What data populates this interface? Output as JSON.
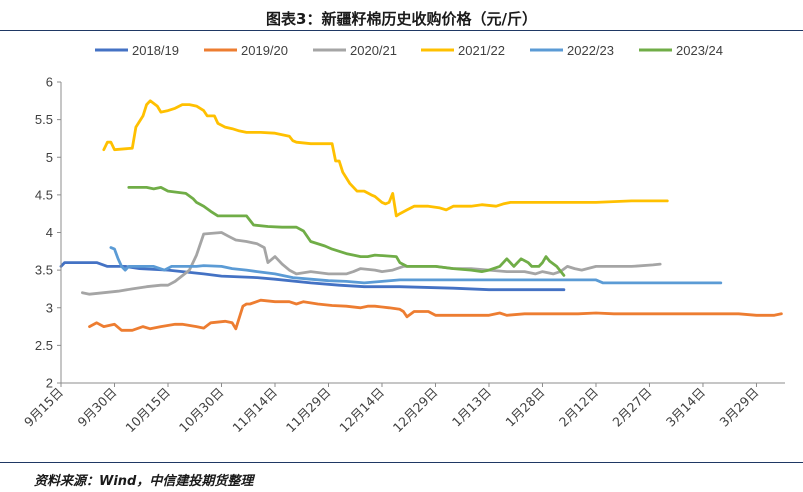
{
  "title": "图表3：新疆籽棉历史收购价格（元/斤）",
  "source": "资料来源：Wind，中信建投期货整理",
  "chart_data": {
    "type": "line",
    "title": "图表3：新疆籽棉历史收购价格（元/斤）",
    "xlabel": "",
    "ylabel": "",
    "ylim": [
      2,
      6
    ],
    "yticks": [
      "2",
      "2.5",
      "3",
      "3.5",
      "4",
      "4.5",
      "5",
      "5.5",
      "6"
    ],
    "x_categories": [
      "9月15日",
      "9月30日",
      "10月15日",
      "10月30日",
      "11月14日",
      "11月29日",
      "12月14日",
      "12月29日",
      "1月13日",
      "1月28日",
      "2月12日",
      "2月27日",
      "3月14日",
      "3月29日"
    ],
    "x_index_note": "x values are day offsets; 0 = 9月15日, each labelled tick is 15 days apart",
    "legend_position": "top",
    "grid": false,
    "series": [
      {
        "name": "2018/19",
        "color": "#4472c4",
        "points": [
          [
            0,
            3.55
          ],
          [
            1,
            3.6
          ],
          [
            5,
            3.6
          ],
          [
            10,
            3.6
          ],
          [
            13,
            3.55
          ],
          [
            18,
            3.55
          ],
          [
            22,
            3.52
          ],
          [
            30,
            3.5
          ],
          [
            40,
            3.45
          ],
          [
            45,
            3.42
          ],
          [
            55,
            3.4
          ],
          [
            60,
            3.38
          ],
          [
            70,
            3.33
          ],
          [
            78,
            3.3
          ],
          [
            85,
            3.28
          ],
          [
            95,
            3.28
          ],
          [
            110,
            3.26
          ],
          [
            120,
            3.24
          ],
          [
            130,
            3.24
          ],
          [
            141,
            3.24
          ]
        ]
      },
      {
        "name": "2019/20",
        "color": "#ed7d31",
        "points": [
          [
            8,
            2.75
          ],
          [
            10,
            2.8
          ],
          [
            12,
            2.75
          ],
          [
            15,
            2.78
          ],
          [
            17,
            2.7
          ],
          [
            20,
            2.7
          ],
          [
            23,
            2.75
          ],
          [
            25,
            2.72
          ],
          [
            28,
            2.75
          ],
          [
            32,
            2.78
          ],
          [
            34,
            2.78
          ],
          [
            38,
            2.75
          ],
          [
            40,
            2.73
          ],
          [
            42,
            2.8
          ],
          [
            46,
            2.82
          ],
          [
            48,
            2.8
          ],
          [
            49,
            2.72
          ],
          [
            51,
            3.02
          ],
          [
            52,
            3.05
          ],
          [
            53,
            3.05
          ],
          [
            56,
            3.1
          ],
          [
            60,
            3.08
          ],
          [
            64,
            3.08
          ],
          [
            66,
            3.05
          ],
          [
            68,
            3.08
          ],
          [
            72,
            3.05
          ],
          [
            76,
            3.03
          ],
          [
            80,
            3.02
          ],
          [
            84,
            3.0
          ],
          [
            86,
            3.02
          ],
          [
            88,
            3.02
          ],
          [
            92,
            3.0
          ],
          [
            95,
            2.98
          ],
          [
            96,
            2.95
          ],
          [
            97,
            2.88
          ],
          [
            99,
            2.95
          ],
          [
            103,
            2.95
          ],
          [
            105,
            2.9
          ],
          [
            108,
            2.9
          ],
          [
            112,
            2.9
          ],
          [
            115,
            2.9
          ],
          [
            120,
            2.9
          ],
          [
            123,
            2.93
          ],
          [
            125,
            2.9
          ],
          [
            130,
            2.92
          ],
          [
            136,
            2.92
          ],
          [
            140,
            2.92
          ],
          [
            145,
            2.92
          ],
          [
            150,
            2.93
          ],
          [
            155,
            2.92
          ],
          [
            160,
            2.92
          ],
          [
            170,
            2.92
          ],
          [
            180,
            2.92
          ],
          [
            190,
            2.92
          ],
          [
            195,
            2.9
          ],
          [
            200,
            2.9
          ],
          [
            202,
            2.92
          ]
        ]
      },
      {
        "name": "2020/21",
        "color": "#a5a5a5",
        "points": [
          [
            6,
            3.2
          ],
          [
            8,
            3.18
          ],
          [
            12,
            3.2
          ],
          [
            16,
            3.22
          ],
          [
            20,
            3.25
          ],
          [
            24,
            3.28
          ],
          [
            28,
            3.3
          ],
          [
            30,
            3.3
          ],
          [
            32,
            3.35
          ],
          [
            36,
            3.5
          ],
          [
            38,
            3.7
          ],
          [
            40,
            3.98
          ],
          [
            45,
            4.0
          ],
          [
            47,
            3.95
          ],
          [
            49,
            3.9
          ],
          [
            52,
            3.88
          ],
          [
            55,
            3.85
          ],
          [
            57,
            3.8
          ],
          [
            58,
            3.6
          ],
          [
            60,
            3.68
          ],
          [
            62,
            3.58
          ],
          [
            64,
            3.5
          ],
          [
            66,
            3.45
          ],
          [
            70,
            3.48
          ],
          [
            75,
            3.45
          ],
          [
            80,
            3.45
          ],
          [
            82,
            3.48
          ],
          [
            84,
            3.52
          ],
          [
            88,
            3.5
          ],
          [
            90,
            3.48
          ],
          [
            93,
            3.5
          ],
          [
            96,
            3.55
          ],
          [
            100,
            3.55
          ],
          [
            105,
            3.55
          ],
          [
            110,
            3.52
          ],
          [
            115,
            3.52
          ],
          [
            120,
            3.5
          ],
          [
            125,
            3.48
          ],
          [
            130,
            3.48
          ],
          [
            133,
            3.45
          ],
          [
            135,
            3.48
          ],
          [
            138,
            3.45
          ],
          [
            140,
            3.48
          ],
          [
            142,
            3.55
          ],
          [
            144,
            3.52
          ],
          [
            146,
            3.5
          ],
          [
            150,
            3.55
          ],
          [
            155,
            3.55
          ],
          [
            160,
            3.55
          ],
          [
            166,
            3.57
          ],
          [
            168,
            3.58
          ]
        ]
      },
      {
        "name": "2021/22",
        "color": "#ffc000",
        "points": [
          [
            12,
            5.1
          ],
          [
            13,
            5.2
          ],
          [
            14,
            5.2
          ],
          [
            15,
            5.1
          ],
          [
            20,
            5.12
          ],
          [
            21,
            5.4
          ],
          [
            23,
            5.55
          ],
          [
            24,
            5.7
          ],
          [
            25,
            5.75
          ],
          [
            27,
            5.68
          ],
          [
            28,
            5.6
          ],
          [
            30,
            5.62
          ],
          [
            32,
            5.65
          ],
          [
            34,
            5.7
          ],
          [
            36,
            5.7
          ],
          [
            38,
            5.68
          ],
          [
            40,
            5.62
          ],
          [
            41,
            5.55
          ],
          [
            43,
            5.55
          ],
          [
            44,
            5.45
          ],
          [
            46,
            5.4
          ],
          [
            48,
            5.38
          ],
          [
            50,
            5.35
          ],
          [
            52,
            5.33
          ],
          [
            56,
            5.33
          ],
          [
            60,
            5.32
          ],
          [
            62,
            5.3
          ],
          [
            64,
            5.28
          ],
          [
            65,
            5.22
          ],
          [
            66,
            5.2
          ],
          [
            70,
            5.18
          ],
          [
            74,
            5.18
          ],
          [
            76,
            5.18
          ],
          [
            77,
            4.95
          ],
          [
            78,
            4.95
          ],
          [
            79,
            4.8
          ],
          [
            81,
            4.65
          ],
          [
            83,
            4.55
          ],
          [
            85,
            4.55
          ],
          [
            87,
            4.5
          ],
          [
            88,
            4.48
          ],
          [
            90,
            4.4
          ],
          [
            91,
            4.38
          ],
          [
            92,
            4.4
          ],
          [
            93,
            4.52
          ],
          [
            94,
            4.22
          ],
          [
            95,
            4.25
          ],
          [
            97,
            4.3
          ],
          [
            99,
            4.35
          ],
          [
            103,
            4.35
          ],
          [
            106,
            4.33
          ],
          [
            108,
            4.3
          ],
          [
            110,
            4.35
          ],
          [
            115,
            4.35
          ],
          [
            118,
            4.37
          ],
          [
            122,
            4.35
          ],
          [
            124,
            4.38
          ],
          [
            126,
            4.4
          ],
          [
            140,
            4.4
          ],
          [
            150,
            4.4
          ],
          [
            160,
            4.42
          ],
          [
            170,
            4.42
          ]
        ]
      },
      {
        "name": "2022/23",
        "color": "#5b9bd5",
        "points": [
          [
            14,
            3.8
          ],
          [
            15,
            3.78
          ],
          [
            16,
            3.65
          ],
          [
            17,
            3.55
          ],
          [
            18,
            3.5
          ],
          [
            19,
            3.55
          ],
          [
            22,
            3.55
          ],
          [
            26,
            3.55
          ],
          [
            29,
            3.5
          ],
          [
            31,
            3.55
          ],
          [
            34,
            3.55
          ],
          [
            38,
            3.55
          ],
          [
            40,
            3.56
          ],
          [
            45,
            3.55
          ],
          [
            48,
            3.52
          ],
          [
            52,
            3.5
          ],
          [
            55,
            3.48
          ],
          [
            60,
            3.45
          ],
          [
            65,
            3.4
          ],
          [
            70,
            3.38
          ],
          [
            75,
            3.36
          ],
          [
            80,
            3.35
          ],
          [
            85,
            3.33
          ],
          [
            90,
            3.35
          ],
          [
            95,
            3.37
          ],
          [
            100,
            3.37
          ],
          [
            110,
            3.37
          ],
          [
            120,
            3.37
          ],
          [
            130,
            3.37
          ],
          [
            140,
            3.37
          ],
          [
            150,
            3.37
          ],
          [
            152,
            3.33
          ],
          [
            160,
            3.33
          ],
          [
            170,
            3.33
          ],
          [
            180,
            3.33
          ],
          [
            185,
            3.33
          ]
        ]
      },
      {
        "name": "2023/24",
        "color": "#70ad47",
        "points": [
          [
            19,
            4.6
          ],
          [
            24,
            4.6
          ],
          [
            26,
            4.58
          ],
          [
            28,
            4.6
          ],
          [
            30,
            4.55
          ],
          [
            35,
            4.52
          ],
          [
            37,
            4.45
          ],
          [
            38,
            4.4
          ],
          [
            40,
            4.35
          ],
          [
            42,
            4.28
          ],
          [
            44,
            4.22
          ],
          [
            46,
            4.22
          ],
          [
            52,
            4.22
          ],
          [
            54,
            4.1
          ],
          [
            58,
            4.08
          ],
          [
            62,
            4.07
          ],
          [
            66,
            4.07
          ],
          [
            68,
            4.02
          ],
          [
            70,
            3.88
          ],
          [
            74,
            3.82
          ],
          [
            76,
            3.78
          ],
          [
            78,
            3.75
          ],
          [
            80,
            3.72
          ],
          [
            82,
            3.7
          ],
          [
            84,
            3.68
          ],
          [
            86,
            3.68
          ],
          [
            88,
            3.7
          ],
          [
            94,
            3.68
          ],
          [
            95,
            3.6
          ],
          [
            97,
            3.55
          ],
          [
            100,
            3.55
          ],
          [
            105,
            3.55
          ],
          [
            110,
            3.52
          ],
          [
            115,
            3.5
          ],
          [
            118,
            3.48
          ],
          [
            120,
            3.5
          ],
          [
            123,
            3.55
          ],
          [
            125,
            3.65
          ],
          [
            127,
            3.55
          ],
          [
            129,
            3.65
          ],
          [
            131,
            3.6
          ],
          [
            132,
            3.55
          ],
          [
            134,
            3.55
          ],
          [
            135,
            3.6
          ],
          [
            136,
            3.68
          ],
          [
            137,
            3.62
          ],
          [
            139,
            3.55
          ],
          [
            141,
            3.43
          ]
        ]
      }
    ]
  }
}
